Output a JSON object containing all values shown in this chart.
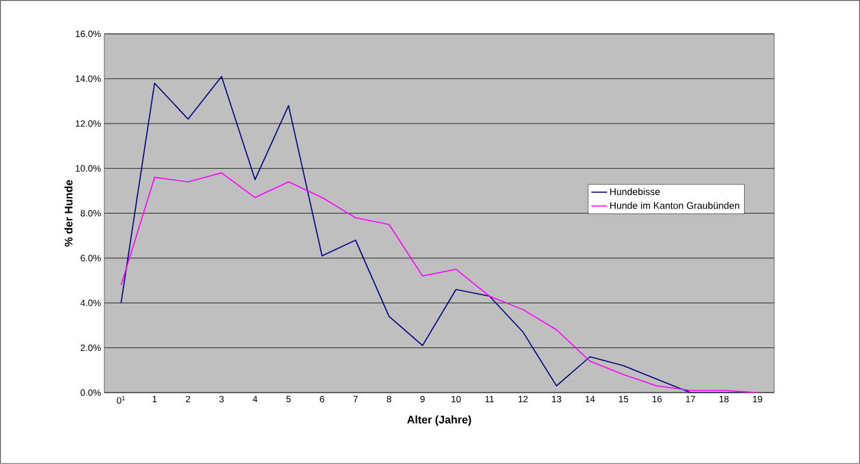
{
  "chart_data": {
    "type": "line",
    "xlabel": "Alter (Jahre)",
    "ylabel": "% der Hunde",
    "categories": [
      "0$^{1}$",
      "1",
      "2",
      "3",
      "4",
      "5",
      "6",
      "7",
      "8",
      "9",
      "10",
      "11",
      "12",
      "13",
      "14",
      "15",
      "16",
      "17",
      "18",
      "19"
    ],
    "series": [
      {
        "name": "Hundebisse",
        "color": "#000080",
        "values": [
          4.0,
          13.8,
          12.2,
          14.1,
          9.5,
          12.8,
          6.1,
          6.8,
          3.4,
          2.1,
          4.6,
          4.3,
          2.7,
          0.3,
          1.6,
          1.2,
          0.6,
          0.0,
          0.0,
          0.0
        ]
      },
      {
        "name": "Hunde im Kanton Graubünden",
        "color": "#ff00ff",
        "values": [
          4.8,
          9.6,
          9.4,
          9.8,
          8.7,
          9.4,
          8.7,
          7.8,
          7.5,
          5.2,
          5.5,
          4.3,
          3.7,
          2.8,
          1.4,
          0.8,
          0.3,
          0.1,
          0.1,
          0.0
        ]
      }
    ],
    "ylim": [
      0,
      16
    ],
    "yticks": [
      {
        "value": 0,
        "label": "0.0%"
      },
      {
        "value": 2,
        "label": "2.0%"
      },
      {
        "value": 4,
        "label": "4.0%"
      },
      {
        "value": 6,
        "label": "6.0%"
      },
      {
        "value": 8,
        "label": "8.0%"
      },
      {
        "value": 10,
        "label": "10.0%"
      },
      {
        "value": 12,
        "label": "12.0%"
      },
      {
        "value": 14,
        "label": "14.0%"
      },
      {
        "value": 16,
        "label": "16.0%"
      }
    ],
    "grid": "y",
    "legend": "right",
    "marker": "none",
    "line_style": "solid"
  }
}
